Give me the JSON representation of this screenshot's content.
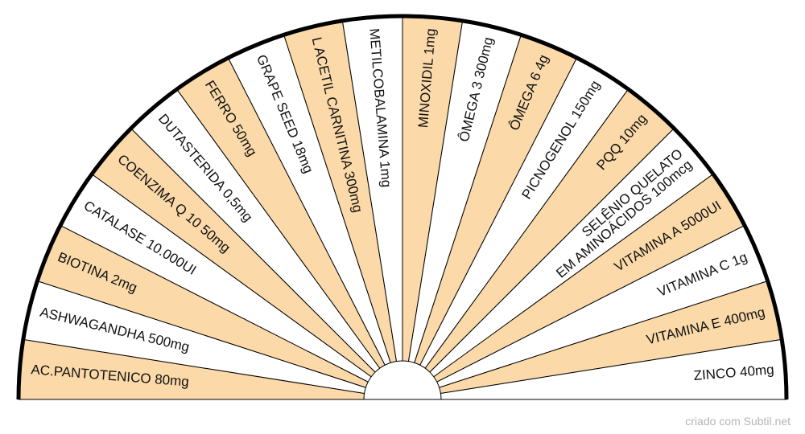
{
  "colors": {
    "fill_a": "#fbd9a8",
    "fill_b": "#ffffff",
    "stroke": "#000000",
    "text": "#111111"
  },
  "slices": [
    [
      "AC.PANTOTENICO 80mg"
    ],
    [
      "ASHWAGANDHA 500mg"
    ],
    [
      "BIOTINA 2mg"
    ],
    [
      "CATALASE 10.000UI"
    ],
    [
      "COENZIMA Q 10 50mg"
    ],
    [
      "DUTASTERIDA 0,5mg"
    ],
    [
      "FERRO 50mg"
    ],
    [
      "GRAPE SEED 18mg"
    ],
    [
      "L ACETIL CARNITINA 300mg"
    ],
    [
      "METILCOBALAMINA 1mg"
    ],
    [
      "MINOXIDIL 1mg"
    ],
    [
      "ÔMEGA 3 300mg"
    ],
    [
      "ÔMEGA 6 4g"
    ],
    [
      "PICNOGENOL 150mg"
    ],
    [
      "PQQ 10mg"
    ],
    [
      "SELÊNIO QUELATO",
      "EM AMINOÁCIDOS 100mcg"
    ],
    [
      "VITAMINA A 5000UI"
    ],
    [
      "VITAMINA C 1g"
    ],
    [
      "VITAMINA E 400mg"
    ],
    [
      "ZINCO 40mg"
    ]
  ],
  "credit": "criado com Subtil.net"
}
